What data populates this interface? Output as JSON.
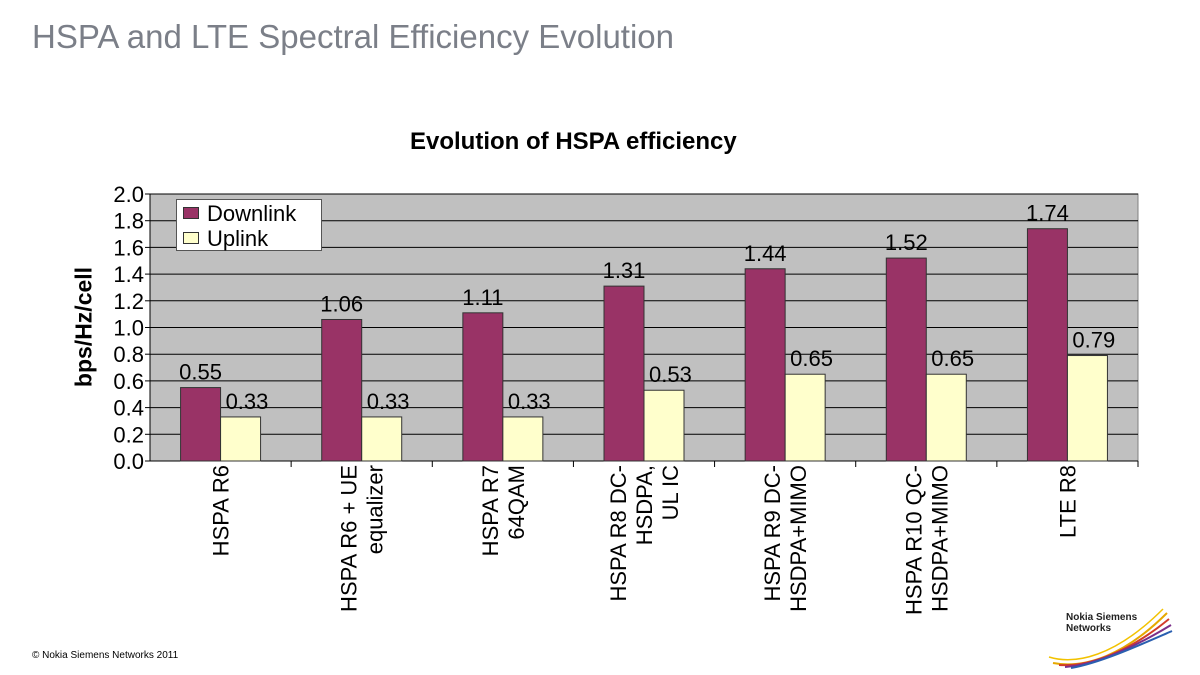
{
  "slide": {
    "title": "HSPA and LTE Spectral Efficiency Evolution",
    "copyright": "© Nokia Siemens Networks 2011",
    "logo_text": "Nokia Siemens\nNetworks"
  },
  "chart_data": {
    "type": "bar",
    "title": "Evolution of HSPA efficiency",
    "xlabel": "",
    "ylabel": "bps/Hz/cell",
    "ylim": [
      0,
      2.0
    ],
    "yticks": [
      "0.0",
      "0.2",
      "0.4",
      "0.6",
      "0.8",
      "1.0",
      "1.2",
      "1.4",
      "1.6",
      "1.8",
      "2.0"
    ],
    "grid": true,
    "legend_position": "top-left",
    "categories": [
      "HSPA R6",
      "HSPA R6 + UE\nequalizer",
      "HSPA R7\n64QAM",
      "HSPA R8 DC-\nHSDPA,\nUL IC",
      "HSPA R9 DC-\nHSDPA+MIMO",
      "HSPA R10 QC-\nHSDPA+MIMO",
      "LTE R8"
    ],
    "series": [
      {
        "name": "Downlink",
        "color": "#993366",
        "values": [
          0.55,
          1.06,
          1.11,
          1.31,
          1.44,
          1.52,
          1.74
        ],
        "labels": [
          "0.55",
          "1.06",
          "1.11",
          "1.31",
          "1.44",
          "1.52",
          "1.74"
        ]
      },
      {
        "name": "Uplink",
        "color": "#ffffcc",
        "values": [
          0.33,
          0.33,
          0.33,
          0.53,
          0.65,
          0.65,
          0.79
        ],
        "labels": [
          "0.33",
          "0.33",
          "0.33",
          "0.53",
          "0.65",
          "0.65",
          "0.79"
        ]
      }
    ],
    "plot_background": "#c0c0c0"
  }
}
